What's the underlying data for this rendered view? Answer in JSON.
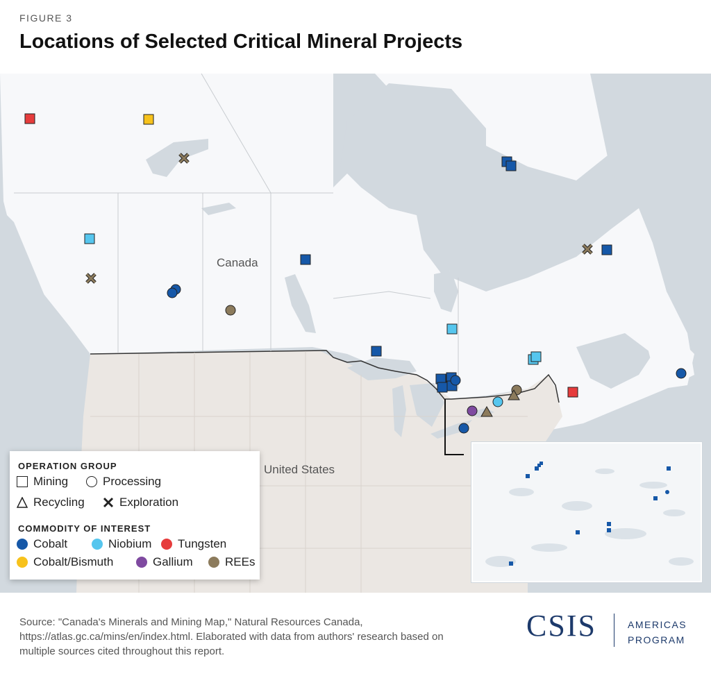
{
  "figure_label": "FIGURE 3",
  "title": "Locations of Selected Critical Mineral Projects",
  "map": {
    "country_labels": {
      "canada": "Canada",
      "us": "United States"
    }
  },
  "legend": {
    "operation_heading": "OPERATION GROUP",
    "operations": [
      {
        "label": "Mining",
        "symbol": "square"
      },
      {
        "label": "Processing",
        "symbol": "circle"
      },
      {
        "label": "Recycling",
        "symbol": "triangle"
      },
      {
        "label": "Exploration",
        "symbol": "x"
      }
    ],
    "commodity_heading": "COMMODITY OF INTEREST",
    "commodities": [
      {
        "label": "Cobalt",
        "color": "#1658a8"
      },
      {
        "label": "Niobium",
        "color": "#56c6ee"
      },
      {
        "label": "Tungsten",
        "color": "#e63c3c"
      },
      {
        "label": "Cobalt/Bismuth",
        "color": "#f7c21c"
      },
      {
        "label": "Gallium",
        "color": "#7f4aa0"
      },
      {
        "label": "REEs",
        "color": "#8c7b5c"
      }
    ]
  },
  "source": "Source: \"Canada's Minerals and Mining Map,\" Natural Resources Canada, https://atlas.gc.ca/mins/en/index.html. Elaborated with data from authors' research based on multiple sources cited throughout this report.",
  "logo": {
    "name": "CSIS",
    "line1": "AMERICAS",
    "line2": "PROGRAM"
  }
}
